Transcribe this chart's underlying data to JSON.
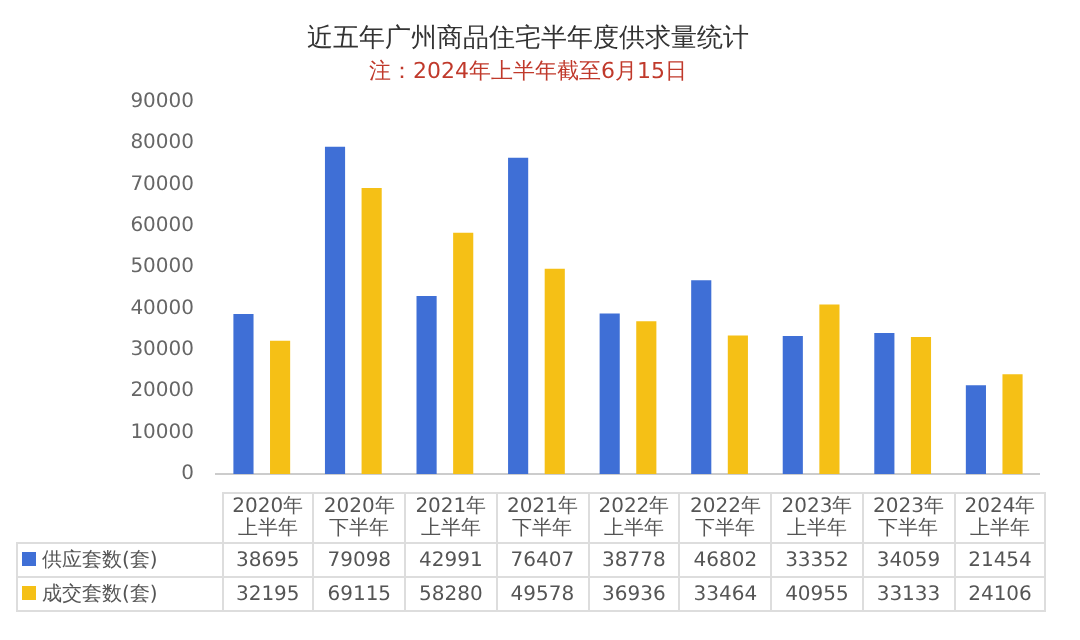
{
  "chart_data": {
    "type": "bar",
    "title": "近五年广州商品住宅半年度供求量统计",
    "subtitle": "注：2024年上半年截至6月15日",
    "categories": [
      "2020年上半年",
      "2020年下半年",
      "2021年上半年",
      "2021年下半年",
      "2022年上半年",
      "2022年下半年",
      "2023年上半年",
      "2023年下半年",
      "2024年上半年"
    ],
    "series": [
      {
        "name": "供应套数(套)",
        "color": "#3f6fd6",
        "values": [
          38695,
          79098,
          42991,
          76407,
          38778,
          46802,
          33352,
          34059,
          21454
        ]
      },
      {
        "name": "成交套数(套)",
        "color": "#f5c016",
        "values": [
          32195,
          69115,
          58280,
          49578,
          36936,
          33464,
          40955,
          33133,
          24106
        ]
      }
    ],
    "ylim": [
      0,
      90000
    ],
    "yticks": [
      0,
      10000,
      20000,
      30000,
      40000,
      50000,
      60000,
      70000,
      80000,
      90000
    ],
    "grid": false,
    "legend": "bottom",
    "data_labels": true
  }
}
